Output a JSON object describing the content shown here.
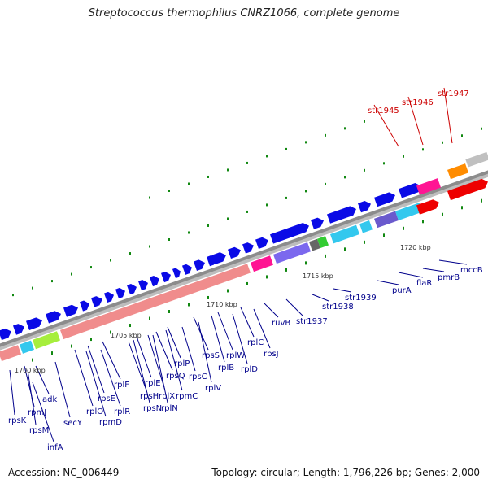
{
  "title": "Streptococcus thermophilus CNRZ1066, complete genome",
  "footer": {
    "accession": "Accession: NC_006449",
    "summary": "Topology: circular; Length: 1,796,226 bp; Genes: 2,000"
  },
  "colors": {
    "backbone": "#8c8c8c",
    "forward_gene": "#0a0ae6",
    "ribosomal": "#f08c8c",
    "lime": "#a6ee3c",
    "cyan": "#33c8ee",
    "magenta": "#ff1493",
    "purple": "#7b68ee",
    "orange": "#ff8c00",
    "red": "#ee0000",
    "tick": "#118811",
    "label_blue": "#00008b",
    "label_red": "#cc0000"
  },
  "kbp_labels": [
    "1700 kbp",
    "1705 kbp",
    "1710 kbp",
    "1715 kbp",
    "1720 kbp"
  ],
  "gene_labels": [
    {
      "text": "rpsK",
      "color": "blue"
    },
    {
      "text": "rpmJ",
      "color": "blue"
    },
    {
      "text": "rpsM",
      "color": "blue"
    },
    {
      "text": "infA",
      "color": "blue"
    },
    {
      "text": "adk",
      "color": "blue"
    },
    {
      "text": "secY",
      "color": "blue"
    },
    {
      "text": "rplO",
      "color": "blue"
    },
    {
      "text": "rpmD",
      "color": "blue"
    },
    {
      "text": "rpsE",
      "color": "blue"
    },
    {
      "text": "rplR",
      "color": "blue"
    },
    {
      "text": "rplF",
      "color": "blue"
    },
    {
      "text": "rpsH",
      "color": "blue"
    },
    {
      "text": "rpsN",
      "color": "blue"
    },
    {
      "text": "rplE",
      "color": "blue"
    },
    {
      "text": "rplX",
      "color": "blue"
    },
    {
      "text": "rplN",
      "color": "blue"
    },
    {
      "text": "rpsQ",
      "color": "blue"
    },
    {
      "text": "rpmC",
      "color": "blue"
    },
    {
      "text": "rplP",
      "color": "blue"
    },
    {
      "text": "rpsC",
      "color": "blue"
    },
    {
      "text": "rplV",
      "color": "blue"
    },
    {
      "text": "rpsS",
      "color": "blue"
    },
    {
      "text": "rplB",
      "color": "blue"
    },
    {
      "text": "rplW",
      "color": "blue"
    },
    {
      "text": "rplD",
      "color": "blue"
    },
    {
      "text": "rplC",
      "color": "blue"
    },
    {
      "text": "rpsJ",
      "color": "blue"
    },
    {
      "text": "ruvB",
      "color": "blue"
    },
    {
      "text": "str1937",
      "color": "blue"
    },
    {
      "text": "str1938",
      "color": "blue"
    },
    {
      "text": "str1939",
      "color": "blue"
    },
    {
      "text": "purA",
      "color": "blue"
    },
    {
      "text": "flaR",
      "color": "blue"
    },
    {
      "text": "pmrB",
      "color": "blue"
    },
    {
      "text": "mccB",
      "color": "blue"
    },
    {
      "text": "str1945",
      "color": "red"
    },
    {
      "text": "str1946",
      "color": "red"
    },
    {
      "text": "str1947",
      "color": "red"
    }
  ]
}
